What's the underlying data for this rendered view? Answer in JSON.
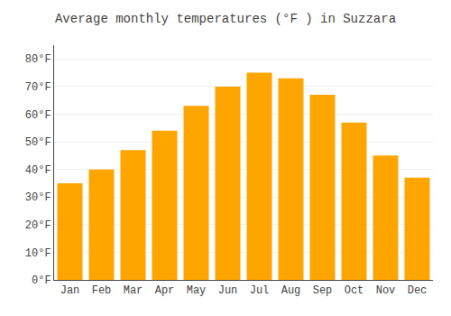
{
  "chart_data": {
    "type": "bar",
    "title": "Average monthly temperatures (°F ) in Suzzara",
    "categories": [
      "Jan",
      "Feb",
      "Mar",
      "Apr",
      "May",
      "Jun",
      "Jul",
      "Aug",
      "Sep",
      "Oct",
      "Nov",
      "Dec"
    ],
    "values": [
      35,
      40,
      47,
      54,
      63,
      70,
      75,
      73,
      67,
      57,
      45,
      37
    ],
    "color": "#FFA500",
    "ylim": [
      0,
      85
    ],
    "yticks": [
      {
        "value": 0,
        "label": "0°F"
      },
      {
        "value": 10,
        "label": "10°F"
      },
      {
        "value": 20,
        "label": "20°F"
      },
      {
        "value": 30,
        "label": "30°F"
      },
      {
        "value": 40,
        "label": "40°F"
      },
      {
        "value": 50,
        "label": "50°F"
      },
      {
        "value": 60,
        "label": "60°F"
      },
      {
        "value": 70,
        "label": "70°F"
      },
      {
        "value": 80,
        "label": "80°F"
      }
    ],
    "grid": true
  }
}
